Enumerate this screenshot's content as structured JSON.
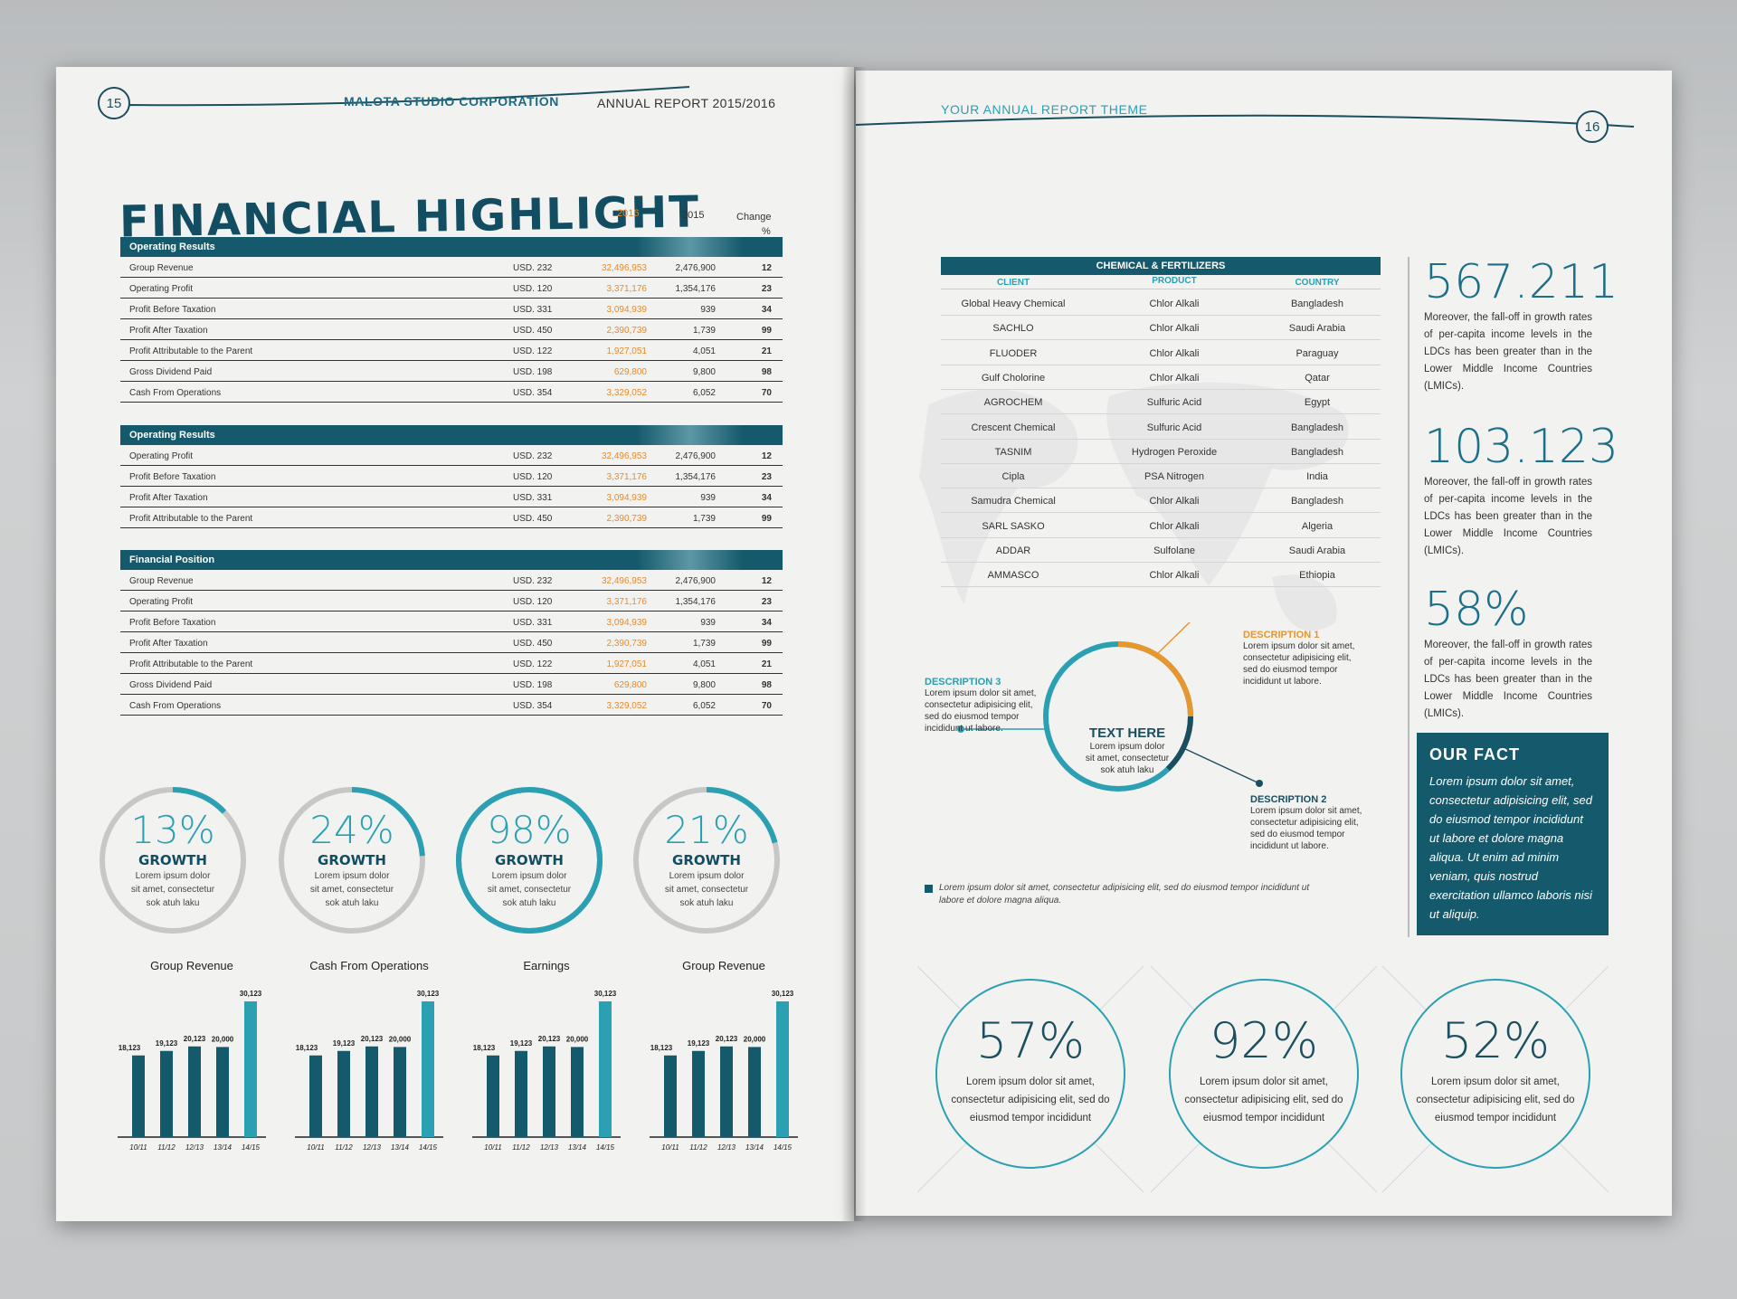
{
  "left_page": {
    "brand": "MALOTA STUDIO CORPORATION",
    "report": "ANNUAL REPORT 2015/2016",
    "page_number": "15",
    "title": "FINANCIAL HIGHLIGHT",
    "columns": {
      "y2016": "2016",
      "y2015": "2015",
      "change": "Change",
      "pct": "%"
    },
    "sections": [
      {
        "title": "Operating Results",
        "rows": [
          {
            "label": "Group Revenue",
            "usd": "USD. 232",
            "v2016": "32,496,953",
            "v2015": "2,476,900",
            "change": "12"
          },
          {
            "label": "Operating Profit",
            "usd": "USD. 120",
            "v2016": "3,371,176",
            "v2015": "1,354,176",
            "change": "23"
          },
          {
            "label": "Profit Before Taxation",
            "usd": "USD. 331",
            "v2016": "3,094,939",
            "v2015": "939",
            "change": "34"
          },
          {
            "label": "Profit After Taxation",
            "usd": "USD. 450",
            "v2016": "2,390,739",
            "v2015": "1,739",
            "change": "99"
          },
          {
            "label": "Profit Attributable to the Parent",
            "usd": "USD. 122",
            "v2016": "1,927,051",
            "v2015": "4,051",
            "change": "21"
          },
          {
            "label": "Gross Dividend Paid",
            "usd": "USD. 198",
            "v2016": "629,800",
            "v2015": "9,800",
            "change": "98"
          },
          {
            "label": "Cash From Operations",
            "usd": "USD. 354",
            "v2016": "3,329,052",
            "v2015": "6,052",
            "change": "70"
          }
        ]
      },
      {
        "title": "Operating Results",
        "rows": [
          {
            "label": "Operating Profit",
            "usd": "USD. 232",
            "v2016": "32,496,953",
            "v2015": "2,476,900",
            "change": "12"
          },
          {
            "label": "Profit Before Taxation",
            "usd": "USD. 120",
            "v2016": "3,371,176",
            "v2015": "1,354,176",
            "change": "23"
          },
          {
            "label": "Profit After Taxation",
            "usd": "USD. 331",
            "v2016": "3,094,939",
            "v2015": "939",
            "change": "34"
          },
          {
            "label": "Profit Attributable to the Parent",
            "usd": "USD. 450",
            "v2016": "2,390,739",
            "v2015": "1,739",
            "change": "99"
          }
        ]
      },
      {
        "title": "Financial Position",
        "rows": [
          {
            "label": "Group Revenue",
            "usd": "USD. 232",
            "v2016": "32,496,953",
            "v2015": "2,476,900",
            "change": "12"
          },
          {
            "label": "Operating Profit",
            "usd": "USD. 120",
            "v2016": "3,371,176",
            "v2015": "1,354,176",
            "change": "23"
          },
          {
            "label": "Profit Before Taxation",
            "usd": "USD. 331",
            "v2016": "3,094,939",
            "v2015": "939",
            "change": "34"
          },
          {
            "label": "Profit After Taxation",
            "usd": "USD. 450",
            "v2016": "2,390,739",
            "v2015": "1,739",
            "change": "99"
          },
          {
            "label": "Profit Attributable to the Parent",
            "usd": "USD. 122",
            "v2016": "1,927,051",
            "v2015": "4,051",
            "change": "21"
          },
          {
            "label": "Gross Dividend Paid",
            "usd": "USD. 198",
            "v2016": "629,800",
            "v2015": "9,800",
            "change": "98"
          },
          {
            "label": "Cash From Operations",
            "usd": "USD. 354",
            "v2016": "3,329,052",
            "v2015": "6,052",
            "change": "70"
          }
        ]
      }
    ],
    "donuts": [
      {
        "pct": "13%",
        "value": 0.13,
        "label": "GROWTH",
        "desc1": "Lorem ipsum dolor",
        "desc2": "sit amet, consectetur",
        "desc3": "sok atuh laku"
      },
      {
        "pct": "24%",
        "value": 0.24,
        "label": "GROWTH",
        "desc1": "Lorem ipsum dolor",
        "desc2": "sit amet, consectetur",
        "desc3": "sok atuh laku"
      },
      {
        "pct": "98%",
        "value": 0.98,
        "label": "GROWTH",
        "desc1": "Lorem ipsum dolor",
        "desc2": "sit amet, consectetur",
        "desc3": "sok atuh laku"
      },
      {
        "pct": "21%",
        "value": 0.21,
        "label": "GROWTH",
        "desc1": "Lorem ipsum dolor",
        "desc2": "sit amet, consectetur",
        "desc3": "sok atuh laku"
      }
    ]
  },
  "chart_data": [
    {
      "type": "bar",
      "title": "Group Revenue",
      "categories": [
        "10/11",
        "11/12",
        "12/13",
        "13/14",
        "14/15"
      ],
      "values": [
        18123,
        19123,
        20123,
        20000,
        30123
      ],
      "labels": [
        "18,123",
        "19,123",
        "20,123",
        "20,000",
        "30,123"
      ]
    },
    {
      "type": "bar",
      "title": "Cash From Operations",
      "categories": [
        "10/11",
        "11/12",
        "12/13",
        "13/14",
        "14/15"
      ],
      "values": [
        18123,
        19123,
        20123,
        20000,
        30123
      ],
      "labels": [
        "18,123",
        "19,123",
        "20,123",
        "20,000",
        "30,123"
      ]
    },
    {
      "type": "bar",
      "title": "Earnings",
      "categories": [
        "10/11",
        "11/12",
        "12/13",
        "13/14",
        "14/15"
      ],
      "values": [
        18123,
        19123,
        20123,
        20000,
        30123
      ],
      "labels": [
        "18,123",
        "19,123",
        "20,123",
        "20,000",
        "30,123"
      ]
    },
    {
      "type": "bar",
      "title": "Group Revenue",
      "categories": [
        "10/11",
        "11/12",
        "12/13",
        "13/14",
        "14/15"
      ],
      "values": [
        18123,
        19123,
        20123,
        20000,
        30123
      ],
      "labels": [
        "18,123",
        "19,123",
        "20,123",
        "20,000",
        "30,123"
      ]
    }
  ],
  "right_page": {
    "header": "YOUR ANNUAL REPORT THEME",
    "page_number": "16",
    "table_title": "CHEMICAL & FERTILIZERS",
    "table_headers": {
      "client": "CLIENT",
      "product": "PRODUCT",
      "country": "COUNTRY"
    },
    "table_rows": [
      {
        "client": "Global Heavy Chemical",
        "product": "Chlor Alkali",
        "country": "Bangladesh"
      },
      {
        "client": "SACHLO",
        "product": "Chlor Alkali",
        "country": "Saudi Arabia"
      },
      {
        "client": "FLUODER",
        "product": "Chlor Alkali",
        "country": "Paraguay"
      },
      {
        "client": "Gulf Cholorine",
        "product": "Chlor Alkali",
        "country": "Qatar"
      },
      {
        "client": "AGROCHEM",
        "product": "Sulfuric Acid",
        "country": "Egypt"
      },
      {
        "client": "Crescent Chemical",
        "product": "Sulfuric Acid",
        "country": "Bangladesh"
      },
      {
        "client": "TASNIM",
        "product": "Hydrogen Peroxide",
        "country": "Bangladesh"
      },
      {
        "client": "Cipla",
        "product": "PSA Nitrogen",
        "country": "India"
      },
      {
        "client": "Samudra Chemical",
        "product": "Chlor Alkali",
        "country": "Bangladesh"
      },
      {
        "client": "SARL SASKO",
        "product": "Chlor Alkali",
        "country": "Algeria"
      },
      {
        "client": "ADDAR",
        "product": "Sulfolane",
        "country": "Saudi Arabia"
      },
      {
        "client": "AMMASCO",
        "product": "Chlor Alkali",
        "country": "Ethiopia"
      }
    ],
    "stats": [
      {
        "num": "567.211",
        "desc": "Moreover, the fall-off in growth rates of per-capita income levels in the LDCs has been greater than in the Lower Middle Income Countries (LMICs)."
      },
      {
        "num": "103.123",
        "desc": "Moreover, the fall-off in growth rates of per-capita income levels in the LDCs has been greater than in the Lower Middle Income Countries (LMICs)."
      },
      {
        "num": "58%",
        "desc": "Moreover, the fall-off in growth rates of per-capita income levels in the LDCs has been greater than in the Lower Middle Income Countries (LMICs)."
      }
    ],
    "fact_title": "OUR FACT",
    "fact_body": "Lorem ipsum dolor sit amet, consectetur adipisicing elit, sed do eiusmod tempor incididunt ut labore et dolore magna aliqua. Ut enim ad minim veniam, quis nostrud exercitation ullamco laboris nisi ut aliquip.",
    "ring": {
      "center_title": "TEXT HERE",
      "center_1": "Lorem ipsum dolor",
      "center_2": "sit amet, consectetur",
      "center_3": "sok atuh laku",
      "desc1_title": "DESCRIPTION 1",
      "desc2_title": "DESCRIPTION 2",
      "desc3_title": "DESCRIPTION 3",
      "desc_l1": "Lorem ipsum dolor sit amet,",
      "desc_l2": "consectetur adipisicing elit,",
      "desc_l3": "sed do eiusmod tempor",
      "desc_l4": "incididunt ut labore.",
      "accent_orange": "#e8962e",
      "accent_teal": "#2aa0b2",
      "accent_dark": "#1b4f60"
    },
    "footnote_1": "Lorem ipsum dolor sit amet, consectetur adipisicing elit, sed do eiusmod tempor incididunt ut",
    "footnote_2": "labore et dolore magna aliqua.",
    "circles": [
      {
        "pct": "57%",
        "l1": "Lorem ipsum dolor sit amet,",
        "l2": "consectetur adipisicing elit, sed do",
        "l3": "eiusmod tempor incididunt"
      },
      {
        "pct": "92%",
        "l1": "Lorem ipsum dolor sit amet,",
        "l2": "consectetur adipisicing elit, sed do",
        "l3": "eiusmod tempor incididunt"
      },
      {
        "pct": "52%",
        "l1": "Lorem ipsum dolor sit amet,",
        "l2": "consectetur adipisicing elit, sed do",
        "l3": "eiusmod tempor incididunt"
      }
    ]
  },
  "colors": {
    "teal_dark": "#155a6c",
    "teal_light": "#2aa0b2",
    "orange": "#e88a2b",
    "paper": "#f2f2f0"
  }
}
